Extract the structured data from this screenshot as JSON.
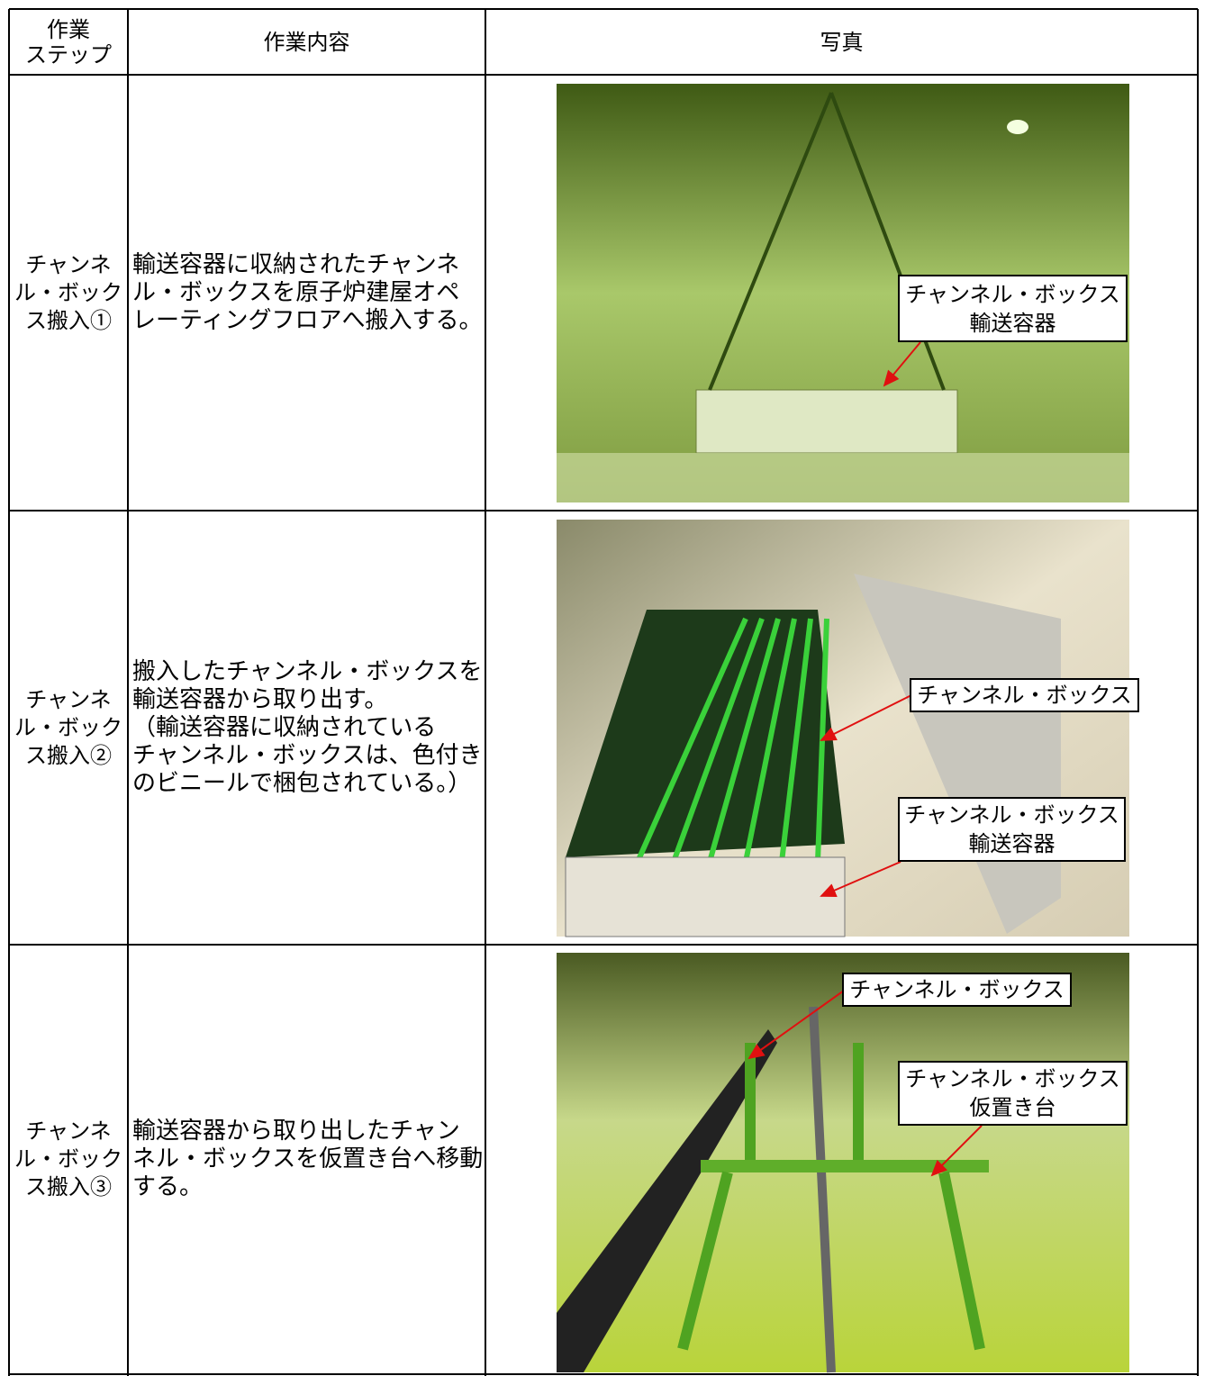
{
  "table": {
    "headers": [
      [
        "作業",
        "ステップ"
      ],
      [
        "作業内容"
      ],
      [
        "写真"
      ]
    ],
    "rows": [
      {
        "step": [
          "チャンネ",
          "ル・ボック",
          "ス搬入①"
        ],
        "content": [
          "輸送容器に収納されたチャンネ",
          "ル・ボックスを原子炉建屋オペ",
          "レーティングフロアへ搬入する。"
        ],
        "photo_labels": [
          [
            "チャンネル・ボックス",
            "輸送容器"
          ]
        ]
      },
      {
        "step": [
          "チャンネ",
          "ル・ボック",
          "ス搬入②"
        ],
        "content": [
          "搬入したチャンネル・ボックスを",
          "輸送容器から取り出す。",
          "（輸送容器に収納されている",
          "チャンネル・ボックスは、色付き",
          "のビニールで梱包されている。）"
        ],
        "photo_labels": [
          [
            "チャンネル・ボックス"
          ],
          [
            "チャンネル・ボックス",
            "輸送容器"
          ]
        ]
      },
      {
        "step": [
          "チャンネ",
          "ル・ボック",
          "ス搬入③"
        ],
        "content": [
          "輸送容器から取り出したチャン",
          "ネル・ボックスを仮置き台へ移動",
          "する。"
        ],
        "photo_labels": [
          [
            "チャンネル・ボックス"
          ],
          [
            "チャンネル・ボックス",
            "仮置き台"
          ]
        ]
      }
    ]
  }
}
